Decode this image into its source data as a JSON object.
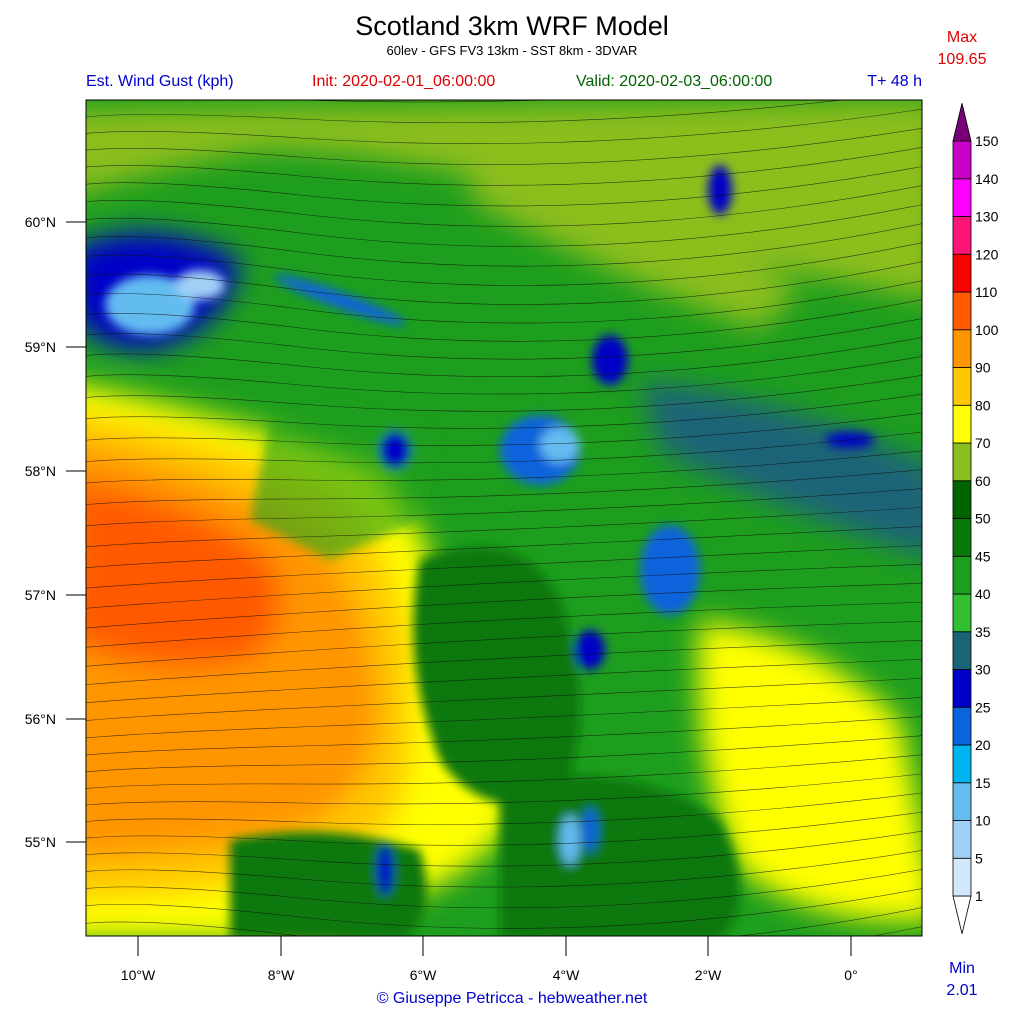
{
  "header": {
    "title": "Scotland 3km WRF Model",
    "subtitle": "60lev - GFS FV3 13km - SST 8km - 3DVAR",
    "field": "Est. Wind Gust (kph)",
    "init": "Init: 2020-02-01_06:00:00",
    "valid": "Valid: 2020-02-03_06:00:00",
    "forecast": "T+ 48  h"
  },
  "max": {
    "label": "Max",
    "value": "109.65"
  },
  "min": {
    "label": "Min",
    "value": "2.01"
  },
  "colorbar": {
    "levels": [
      1,
      5,
      10,
      15,
      20,
      25,
      30,
      35,
      40,
      45,
      50,
      60,
      70,
      80,
      90,
      100,
      110,
      120,
      130,
      140,
      150
    ],
    "colors": [
      "#ffffff",
      "#d2e8fa",
      "#a0d0f5",
      "#64bcf0",
      "#00b4f0",
      "#0a64dc",
      "#0000c8",
      "#1a6478",
      "#32c032",
      "#1e9e1e",
      "#0a780a",
      "#006400",
      "#8cbe1e",
      "#ffff00",
      "#ffc800",
      "#ff9600",
      "#ff5a00",
      "#ff0000",
      "#ff1478",
      "#ff00ff",
      "#c800c8",
      "#780078"
    ]
  },
  "axes": {
    "lat_labels": [
      "60°N",
      "59°N",
      "58°N",
      "57°N",
      "56°N",
      "55°N"
    ],
    "lon_labels": [
      "10°W",
      "8°W",
      "6°W",
      "4°W",
      "2°W",
      "0°"
    ]
  },
  "footer": {
    "credit": "© Giuseppe Petricca - hebweather.net"
  }
}
